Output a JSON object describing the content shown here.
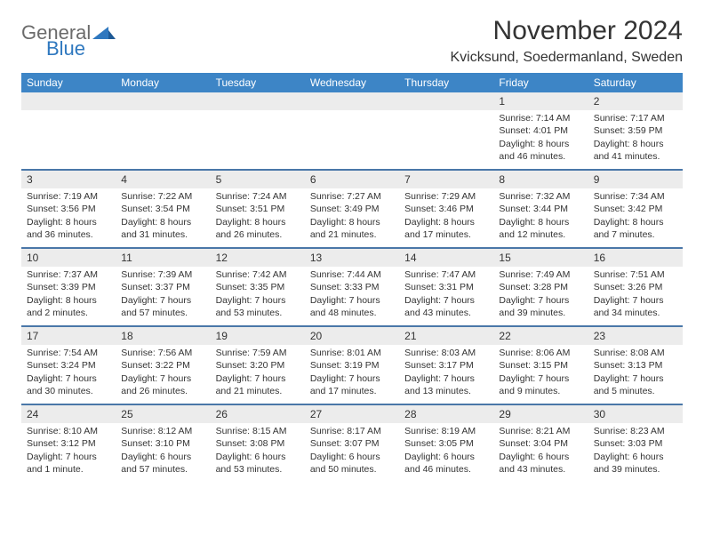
{
  "logo": {
    "general": "General",
    "blue": "Blue"
  },
  "title": "November 2024",
  "location": "Kvicksund, Soedermanland, Sweden",
  "day_headers": [
    "Sunday",
    "Monday",
    "Tuesday",
    "Wednesday",
    "Thursday",
    "Friday",
    "Saturday"
  ],
  "colors": {
    "header_bg": "#3d85c6",
    "header_text": "#ffffff",
    "bar_bg": "#ececec",
    "week_border": "#4a77a8",
    "text": "#333333",
    "logo_gray": "#6b6b6b",
    "logo_blue": "#2f78bf",
    "background": "#ffffff"
  },
  "weeks": [
    [
      {
        "empty": true
      },
      {
        "empty": true
      },
      {
        "empty": true
      },
      {
        "empty": true
      },
      {
        "empty": true
      },
      {
        "num": "1",
        "sunrise": "Sunrise: 7:14 AM",
        "sunset": "Sunset: 4:01 PM",
        "daylight1": "Daylight: 8 hours",
        "daylight2": "and 46 minutes."
      },
      {
        "num": "2",
        "sunrise": "Sunrise: 7:17 AM",
        "sunset": "Sunset: 3:59 PM",
        "daylight1": "Daylight: 8 hours",
        "daylight2": "and 41 minutes."
      }
    ],
    [
      {
        "num": "3",
        "sunrise": "Sunrise: 7:19 AM",
        "sunset": "Sunset: 3:56 PM",
        "daylight1": "Daylight: 8 hours",
        "daylight2": "and 36 minutes."
      },
      {
        "num": "4",
        "sunrise": "Sunrise: 7:22 AM",
        "sunset": "Sunset: 3:54 PM",
        "daylight1": "Daylight: 8 hours",
        "daylight2": "and 31 minutes."
      },
      {
        "num": "5",
        "sunrise": "Sunrise: 7:24 AM",
        "sunset": "Sunset: 3:51 PM",
        "daylight1": "Daylight: 8 hours",
        "daylight2": "and 26 minutes."
      },
      {
        "num": "6",
        "sunrise": "Sunrise: 7:27 AM",
        "sunset": "Sunset: 3:49 PM",
        "daylight1": "Daylight: 8 hours",
        "daylight2": "and 21 minutes."
      },
      {
        "num": "7",
        "sunrise": "Sunrise: 7:29 AM",
        "sunset": "Sunset: 3:46 PM",
        "daylight1": "Daylight: 8 hours",
        "daylight2": "and 17 minutes."
      },
      {
        "num": "8",
        "sunrise": "Sunrise: 7:32 AM",
        "sunset": "Sunset: 3:44 PM",
        "daylight1": "Daylight: 8 hours",
        "daylight2": "and 12 minutes."
      },
      {
        "num": "9",
        "sunrise": "Sunrise: 7:34 AM",
        "sunset": "Sunset: 3:42 PM",
        "daylight1": "Daylight: 8 hours",
        "daylight2": "and 7 minutes."
      }
    ],
    [
      {
        "num": "10",
        "sunrise": "Sunrise: 7:37 AM",
        "sunset": "Sunset: 3:39 PM",
        "daylight1": "Daylight: 8 hours",
        "daylight2": "and 2 minutes."
      },
      {
        "num": "11",
        "sunrise": "Sunrise: 7:39 AM",
        "sunset": "Sunset: 3:37 PM",
        "daylight1": "Daylight: 7 hours",
        "daylight2": "and 57 minutes."
      },
      {
        "num": "12",
        "sunrise": "Sunrise: 7:42 AM",
        "sunset": "Sunset: 3:35 PM",
        "daylight1": "Daylight: 7 hours",
        "daylight2": "and 53 minutes."
      },
      {
        "num": "13",
        "sunrise": "Sunrise: 7:44 AM",
        "sunset": "Sunset: 3:33 PM",
        "daylight1": "Daylight: 7 hours",
        "daylight2": "and 48 minutes."
      },
      {
        "num": "14",
        "sunrise": "Sunrise: 7:47 AM",
        "sunset": "Sunset: 3:31 PM",
        "daylight1": "Daylight: 7 hours",
        "daylight2": "and 43 minutes."
      },
      {
        "num": "15",
        "sunrise": "Sunrise: 7:49 AM",
        "sunset": "Sunset: 3:28 PM",
        "daylight1": "Daylight: 7 hours",
        "daylight2": "and 39 minutes."
      },
      {
        "num": "16",
        "sunrise": "Sunrise: 7:51 AM",
        "sunset": "Sunset: 3:26 PM",
        "daylight1": "Daylight: 7 hours",
        "daylight2": "and 34 minutes."
      }
    ],
    [
      {
        "num": "17",
        "sunrise": "Sunrise: 7:54 AM",
        "sunset": "Sunset: 3:24 PM",
        "daylight1": "Daylight: 7 hours",
        "daylight2": "and 30 minutes."
      },
      {
        "num": "18",
        "sunrise": "Sunrise: 7:56 AM",
        "sunset": "Sunset: 3:22 PM",
        "daylight1": "Daylight: 7 hours",
        "daylight2": "and 26 minutes."
      },
      {
        "num": "19",
        "sunrise": "Sunrise: 7:59 AM",
        "sunset": "Sunset: 3:20 PM",
        "daylight1": "Daylight: 7 hours",
        "daylight2": "and 21 minutes."
      },
      {
        "num": "20",
        "sunrise": "Sunrise: 8:01 AM",
        "sunset": "Sunset: 3:19 PM",
        "daylight1": "Daylight: 7 hours",
        "daylight2": "and 17 minutes."
      },
      {
        "num": "21",
        "sunrise": "Sunrise: 8:03 AM",
        "sunset": "Sunset: 3:17 PM",
        "daylight1": "Daylight: 7 hours",
        "daylight2": "and 13 minutes."
      },
      {
        "num": "22",
        "sunrise": "Sunrise: 8:06 AM",
        "sunset": "Sunset: 3:15 PM",
        "daylight1": "Daylight: 7 hours",
        "daylight2": "and 9 minutes."
      },
      {
        "num": "23",
        "sunrise": "Sunrise: 8:08 AM",
        "sunset": "Sunset: 3:13 PM",
        "daylight1": "Daylight: 7 hours",
        "daylight2": "and 5 minutes."
      }
    ],
    [
      {
        "num": "24",
        "sunrise": "Sunrise: 8:10 AM",
        "sunset": "Sunset: 3:12 PM",
        "daylight1": "Daylight: 7 hours",
        "daylight2": "and 1 minute."
      },
      {
        "num": "25",
        "sunrise": "Sunrise: 8:12 AM",
        "sunset": "Sunset: 3:10 PM",
        "daylight1": "Daylight: 6 hours",
        "daylight2": "and 57 minutes."
      },
      {
        "num": "26",
        "sunrise": "Sunrise: 8:15 AM",
        "sunset": "Sunset: 3:08 PM",
        "daylight1": "Daylight: 6 hours",
        "daylight2": "and 53 minutes."
      },
      {
        "num": "27",
        "sunrise": "Sunrise: 8:17 AM",
        "sunset": "Sunset: 3:07 PM",
        "daylight1": "Daylight: 6 hours",
        "daylight2": "and 50 minutes."
      },
      {
        "num": "28",
        "sunrise": "Sunrise: 8:19 AM",
        "sunset": "Sunset: 3:05 PM",
        "daylight1": "Daylight: 6 hours",
        "daylight2": "and 46 minutes."
      },
      {
        "num": "29",
        "sunrise": "Sunrise: 8:21 AM",
        "sunset": "Sunset: 3:04 PM",
        "daylight1": "Daylight: 6 hours",
        "daylight2": "and 43 minutes."
      },
      {
        "num": "30",
        "sunrise": "Sunrise: 8:23 AM",
        "sunset": "Sunset: 3:03 PM",
        "daylight1": "Daylight: 6 hours",
        "daylight2": "and 39 minutes."
      }
    ]
  ]
}
